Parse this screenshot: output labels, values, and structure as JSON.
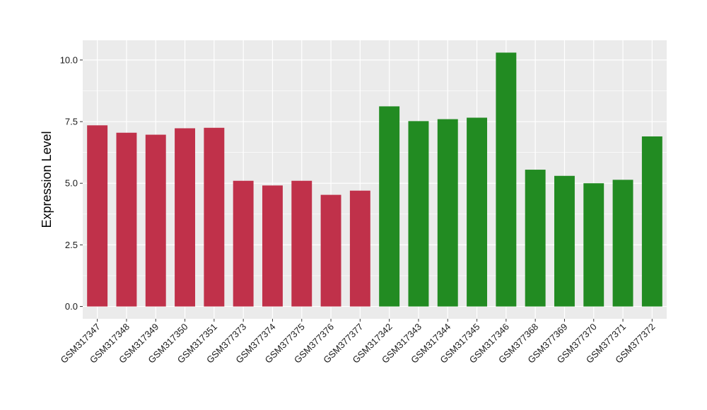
{
  "chart_data": {
    "type": "bar",
    "ylabel": "Expression Level",
    "xlabel": "",
    "ylim": [
      -0.5,
      10.8
    ],
    "yticks": [
      0.0,
      2.5,
      5.0,
      7.5,
      10.0
    ],
    "ytick_labels": [
      "0.0",
      "2.5",
      "5.0",
      "7.5",
      "10.0"
    ],
    "grid": true,
    "legend": "none",
    "categories": [
      "GSM317347",
      "GSM317348",
      "GSM317349",
      "GSM317350",
      "GSM317351",
      "GSM377373",
      "GSM377374",
      "GSM377375",
      "GSM377376",
      "GSM377377",
      "GSM317342",
      "GSM317343",
      "GSM317344",
      "GSM317345",
      "GSM317346",
      "GSM377368",
      "GSM377369",
      "GSM377370",
      "GSM377371",
      "GSM377372"
    ],
    "values": [
      7.35,
      7.05,
      6.97,
      7.23,
      7.25,
      5.1,
      4.91,
      5.1,
      4.53,
      4.7,
      8.12,
      7.52,
      7.6,
      7.66,
      10.3,
      5.55,
      5.3,
      5.0,
      5.14,
      6.9
    ],
    "bar_colors": [
      "#c0314a",
      "#c0314a",
      "#c0314a",
      "#c0314a",
      "#c0314a",
      "#c0314a",
      "#c0314a",
      "#c0314a",
      "#c0314a",
      "#c0314a",
      "#228b22",
      "#228b22",
      "#228b22",
      "#228b22",
      "#228b22",
      "#228b22",
      "#228b22",
      "#228b22",
      "#228b22",
      "#228b22"
    ],
    "panel_background": "#ebebeb",
    "grid_color": "#ffffff"
  }
}
